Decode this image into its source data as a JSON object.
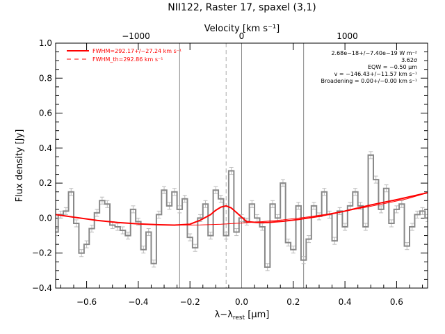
{
  "chart_data": {
    "type": "line",
    "title": "NII122, Raster 17, spaxel (3,1)",
    "xlabel": "λ−λrest [μm]",
    "xlabel_parts": {
      "main": "λ−λ",
      "sub": "rest",
      "unit": " [μm]"
    },
    "ylabel": "Flux density [Jy]",
    "top_axis_label": "Velocity [km s⁻¹]",
    "xlim": [
      -0.72,
      0.72
    ],
    "ylim": [
      -0.4,
      1.0
    ],
    "top_xlim": [
      -1760,
      1760
    ],
    "xticks": [
      -0.6,
      -0.4,
      -0.2,
      0.0,
      0.2,
      0.4,
      0.6
    ],
    "xtick_labels": [
      "−0.6",
      "−0.4",
      "−0.2",
      "0.0",
      "0.2",
      "0.4",
      "0.6"
    ],
    "yticks": [
      -0.4,
      -0.2,
      0.0,
      0.2,
      0.4,
      0.6,
      0.8,
      1.0
    ],
    "ytick_labels": [
      "−0.4",
      "−0.2",
      "0.0",
      "0.2",
      "0.4",
      "0.6",
      "0.8",
      "1.0"
    ],
    "top_xticks": [
      -1000,
      0,
      1000
    ],
    "top_xtick_labels": [
      "−1000",
      "0",
      "1000"
    ],
    "vertical_lines": [
      {
        "x": -0.24,
        "style": "solid",
        "color": "#888888"
      },
      {
        "x": -0.06,
        "style": "dashed",
        "color": "#aaaaaa"
      },
      {
        "x": 0.0,
        "style": "solid",
        "color": "#888888"
      },
      {
        "x": 0.24,
        "style": "solid",
        "color": "#888888"
      }
    ],
    "legend": {
      "position": "top-left",
      "entries": [
        {
          "label": "FWHM=292.17+/−27.24 km s⁻¹",
          "style": "solid",
          "color": "#ff0000"
        },
        {
          "label": "FWHM_th=292.86 km s⁻¹",
          "style": "dashed",
          "color": "#ff0000"
        }
      ]
    },
    "annotations": [
      "2.68e−18+/−7.40e−19 W m⁻²",
      "3.62σ",
      "EQW = −0.50 μm",
      "v = −146.43+/−11.57 km s⁻¹",
      "Broadening = 0.00+/−0.00 km s⁻¹"
    ],
    "series": [
      {
        "style": "steps",
        "color": "#888888",
        "error_color": "#bbbbbb",
        "error": 0.02,
        "x": [
          -0.72,
          -0.7,
          -0.68,
          -0.66,
          -0.64,
          -0.62,
          -0.6,
          -0.58,
          -0.56,
          -0.54,
          -0.52,
          -0.5,
          -0.48,
          -0.46,
          -0.44,
          -0.42,
          -0.4,
          -0.38,
          -0.36,
          -0.34,
          -0.32,
          -0.3,
          -0.28,
          -0.26,
          -0.24,
          -0.22,
          -0.2,
          -0.18,
          -0.16,
          -0.14,
          -0.12,
          -0.1,
          -0.08,
          -0.06,
          -0.04,
          -0.02,
          0.0,
          0.02,
          0.04,
          0.06,
          0.08,
          0.1,
          0.12,
          0.14,
          0.16,
          0.18,
          0.2,
          0.22,
          0.24,
          0.26,
          0.28,
          0.3,
          0.32,
          0.34,
          0.36,
          0.38,
          0.4,
          0.42,
          0.44,
          0.46,
          0.48,
          0.5,
          0.52,
          0.54,
          0.56,
          0.58,
          0.6,
          0.62,
          0.64,
          0.66,
          0.68,
          0.7,
          0.72
        ],
        "values": [
          -0.08,
          0.02,
          0.04,
          0.15,
          -0.03,
          -0.2,
          -0.15,
          -0.06,
          0.03,
          0.1,
          0.08,
          -0.04,
          -0.05,
          -0.07,
          -0.1,
          0.05,
          -0.02,
          -0.18,
          -0.08,
          -0.26,
          0.02,
          0.16,
          0.07,
          0.15,
          0.05,
          0.11,
          -0.11,
          -0.17,
          0.0,
          0.08,
          -0.1,
          0.16,
          0.11,
          -0.1,
          0.27,
          -0.08,
          0.0,
          -0.02,
          0.08,
          0.0,
          -0.05,
          -0.28,
          0.08,
          0.0,
          0.2,
          -0.14,
          -0.18,
          0.07,
          -0.24,
          -0.12,
          0.07,
          0.01,
          0.15,
          0.02,
          -0.13,
          0.04,
          -0.05,
          0.07,
          0.15,
          0.07,
          -0.05,
          0.36,
          0.22,
          0.05,
          0.17,
          -0.03,
          0.05,
          0.08,
          -0.16,
          -0.05,
          0.02,
          0.04,
          0.0
        ]
      },
      {
        "name": "FWHM=292.17+/−27.24 km s⁻¹",
        "style": "solid",
        "color": "#ff0000",
        "x": [
          -0.72,
          -0.64,
          -0.56,
          -0.48,
          -0.4,
          -0.32,
          -0.26,
          -0.2,
          -0.16,
          -0.12,
          -0.1,
          -0.08,
          -0.06,
          -0.04,
          -0.02,
          0.0,
          0.02,
          0.06,
          0.1,
          0.16,
          0.22,
          0.3,
          0.4,
          0.5,
          0.6,
          0.72
        ],
        "values": [
          0.02,
          0.003,
          -0.013,
          -0.025,
          -0.033,
          -0.038,
          -0.04,
          -0.035,
          -0.012,
          0.02,
          0.045,
          0.063,
          0.07,
          0.058,
          0.032,
          0.005,
          -0.02,
          -0.025,
          -0.025,
          -0.018,
          -0.008,
          0.01,
          0.04,
          0.075,
          0.105,
          0.145
        ]
      },
      {
        "name": "continuum",
        "style": "thin",
        "color": "#ff0000",
        "x": [
          -0.72,
          -0.64,
          -0.56,
          -0.48,
          -0.4,
          -0.32,
          -0.24,
          -0.16,
          -0.08,
          0.0,
          0.08,
          0.16,
          0.24,
          0.32,
          0.4,
          0.48,
          0.56,
          0.64,
          0.72
        ],
        "values": [
          0.02,
          0.003,
          -0.013,
          -0.025,
          -0.033,
          -0.038,
          -0.04,
          -0.039,
          -0.035,
          -0.028,
          -0.02,
          -0.01,
          0.003,
          0.02,
          0.04,
          0.062,
          0.085,
          0.11,
          0.145
        ]
      }
    ]
  }
}
